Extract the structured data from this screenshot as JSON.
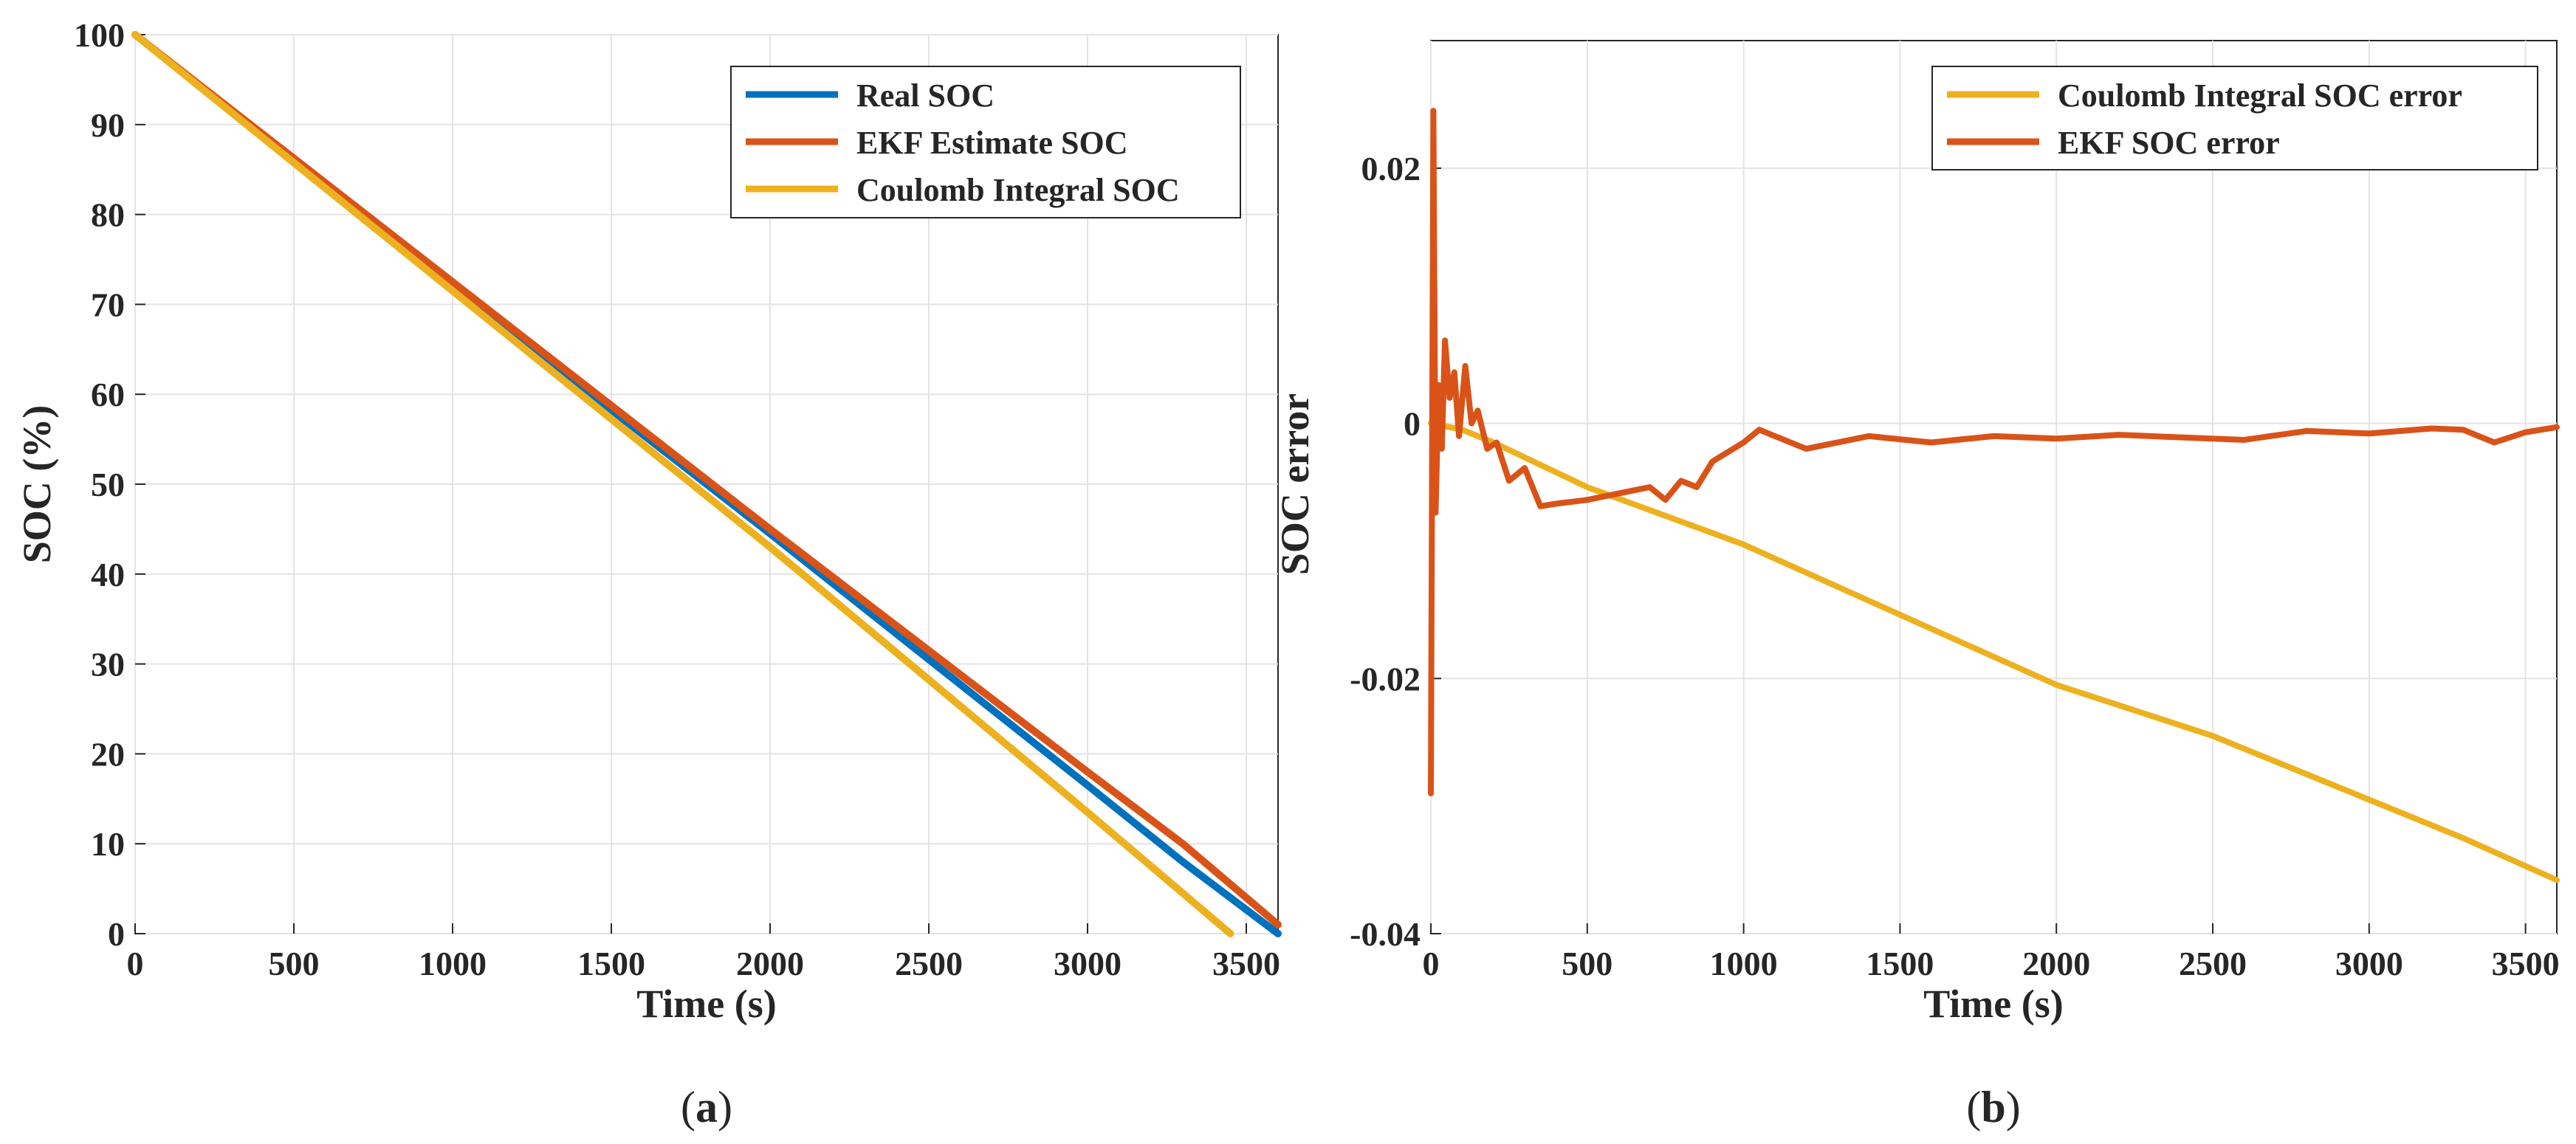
{
  "chart_data": [
    {
      "type": "line",
      "caption": "a",
      "title": "",
      "xlabel": "Time (s)",
      "ylabel": "SOC (%)",
      "xlim": [
        0,
        3600
      ],
      "ylim": [
        0,
        100
      ],
      "xticks": [
        "0",
        "500",
        "1000",
        "1500",
        "2000",
        "2500",
        "3000",
        "3500"
      ],
      "yticks": [
        "0",
        "10",
        "20",
        "30",
        "40",
        "50",
        "60",
        "70",
        "80",
        "90",
        "100"
      ],
      "grid": true,
      "legend_position": "top-right",
      "series": [
        {
          "name": "Real SOC",
          "color": "#0072BD",
          "x": [
            0,
            1000,
            2000,
            3000,
            3300,
            3600
          ],
          "y": [
            100,
            72,
            44.5,
            16.5,
            8,
            0
          ]
        },
        {
          "name": "EKF Estimate SOC",
          "color": "#D95319",
          "x": [
            0,
            1000,
            2000,
            3000,
            3300,
            3600
          ],
          "y": [
            100,
            72.5,
            45,
            18,
            10,
            1
          ]
        },
        {
          "name": "Coulomb Integral SOC",
          "color": "#EDB120",
          "x": [
            0,
            1000,
            2000,
            3000,
            3450
          ],
          "y": [
            100,
            71.5,
            43,
            13.5,
            0
          ]
        }
      ]
    },
    {
      "type": "line",
      "caption": "b",
      "title": "",
      "xlabel": "Time (s)",
      "ylabel": "SOC error",
      "xlim": [
        0,
        3600
      ],
      "ylim": [
        -0.04,
        0.03
      ],
      "xticks": [
        "0",
        "500",
        "1000",
        "1500",
        "2000",
        "2500",
        "3000",
        "3500"
      ],
      "yticks": [
        "-0.04",
        "-0.02",
        "0",
        "0.02"
      ],
      "grid": true,
      "legend_position": "top-right",
      "series": [
        {
          "name": "Coulomb Integral SOC error",
          "color": "#EDB120",
          "x": [
            0,
            100,
            200,
            500,
            1000,
            1500,
            2000,
            2500,
            3000,
            3300,
            3600
          ],
          "y": [
            0,
            -0.0005,
            -0.0015,
            -0.005,
            -0.0095,
            -0.015,
            -0.0205,
            -0.0245,
            -0.0295,
            -0.0325,
            -0.0358
          ]
        },
        {
          "name": "EKF SOC error",
          "color": "#D95319",
          "x": [
            0,
            8,
            15,
            25,
            35,
            45,
            60,
            75,
            90,
            110,
            130,
            150,
            180,
            210,
            250,
            300,
            350,
            400,
            500,
            600,
            700,
            750,
            800,
            850,
            900,
            1000,
            1050,
            1100,
            1200,
            1400,
            1600,
            1800,
            2000,
            2200,
            2400,
            2600,
            2800,
            3000,
            3200,
            3300,
            3400,
            3500,
            3600
          ],
          "y": [
            -0.029,
            0.0245,
            -0.007,
            0.003,
            -0.002,
            0.0065,
            0.002,
            0.004,
            -0.001,
            0.0045,
            0.0,
            0.001,
            -0.002,
            -0.0015,
            -0.0045,
            -0.0035,
            -0.0065,
            -0.0063,
            -0.006,
            -0.0055,
            -0.005,
            -0.006,
            -0.0045,
            -0.005,
            -0.003,
            -0.0015,
            -0.0005,
            -0.001,
            -0.002,
            -0.001,
            -0.0015,
            -0.001,
            -0.0012,
            -0.0009,
            -0.0011,
            -0.0013,
            -0.0006,
            -0.0008,
            -0.0004,
            -0.0005,
            -0.0015,
            -0.0007,
            -0.0003
          ]
        }
      ]
    }
  ]
}
